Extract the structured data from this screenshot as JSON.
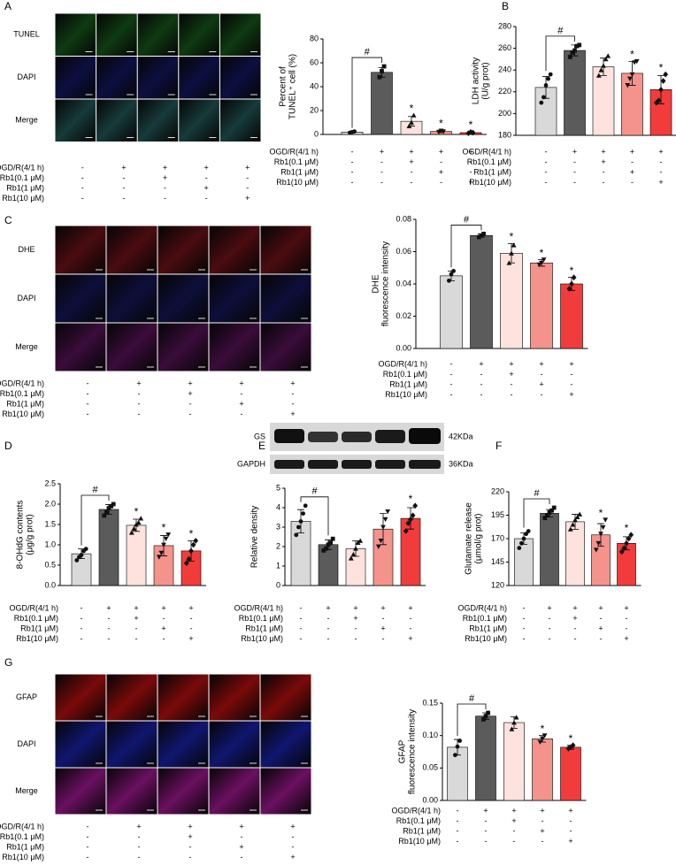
{
  "letters": [
    "A",
    "B",
    "C",
    "D",
    "E",
    "F",
    "G"
  ],
  "conditions": [
    {
      "label": "OGD/R(4/1 h)",
      "signs": [
        "-",
        "+",
        "+",
        "+",
        "+"
      ]
    },
    {
      "label": "Rb1(0.1 μM)",
      "signs": [
        "-",
        "-",
        "+",
        "-",
        "-"
      ]
    },
    {
      "label": "Rb1(1 μM)",
      "signs": [
        "-",
        "-",
        "-",
        "+",
        "-"
      ]
    },
    {
      "label": "Rb1(10 μM)",
      "signs": [
        "-",
        "-",
        "-",
        "-",
        "+"
      ]
    }
  ],
  "image_panels": [
    {
      "rows": [
        {
          "label": "TUNEL",
          "color": "#22b422",
          "image_color": "#0f3a12"
        },
        {
          "label": "DAPI",
          "color": "#2b2bd6",
          "image_color": "#0d0f40"
        },
        {
          "label": "Merge",
          "color": "#000000",
          "image_color": "#173a3a"
        }
      ]
    },
    {
      "rows": [
        {
          "label": "DHE",
          "color": "#e02020",
          "image_color": "#4a0c10"
        },
        {
          "label": "DAPI",
          "color": "#2b2bd6",
          "image_color": "#0d0f3a"
        },
        {
          "label": "Merge",
          "color": "#000000",
          "image_color": "#3a0c3a"
        }
      ]
    },
    {
      "rows": [
        {
          "label": "GFAP",
          "color": "#e02020",
          "image_color": "#7a0a0a"
        },
        {
          "label": "DAPI",
          "color": "#2b2bd6",
          "image_color": "#10166e"
        },
        {
          "label": "Merge",
          "color": "#000000",
          "image_color": "#6a1060"
        }
      ]
    }
  ],
  "blot": {
    "bands": [
      {
        "label": "GS",
        "size": "42KDa"
      },
      {
        "label": "GAPDH",
        "size": "36KDa"
      }
    ]
  },
  "chart_data": [
    {
      "type": "bar",
      "ylabel": [
        "Percent of",
        "TUNEL⁺ cell (%)"
      ],
      "values": [
        2,
        52,
        11,
        2.5,
        1.5
      ],
      "errors": [
        0.5,
        4,
        4,
        1,
        0.8
      ],
      "points": [
        [
          1.5,
          2,
          2.5
        ],
        [
          48,
          53,
          57
        ],
        [
          7,
          10,
          16
        ],
        [
          2,
          3,
          2.5
        ],
        [
          1,
          2,
          1.5
        ]
      ],
      "colors": [
        "#d9d9d9",
        "#5b5b5b",
        "#fde2de",
        "#f4938c",
        "#f23c3c"
      ],
      "ylim": [
        0,
        80
      ],
      "yticks": [
        0,
        20,
        40,
        60,
        80
      ],
      "marks": [
        null,
        "#",
        "*",
        "*",
        "*"
      ]
    },
    {
      "type": "bar",
      "ylabel": [
        "LDH activity",
        "(U/g prot)"
      ],
      "values": [
        224,
        258,
        243,
        237,
        222
      ],
      "errors": [
        10,
        5,
        8,
        11,
        13
      ],
      "points": [
        [
          210,
          215,
          226,
          232,
          236
        ],
        [
          252,
          256,
          258,
          262,
          263
        ],
        [
          235,
          240,
          244,
          250,
          253
        ],
        [
          226,
          232,
          236,
          247,
          248
        ],
        [
          210,
          212,
          222,
          230,
          236
        ]
      ],
      "colors": [
        "#d9d9d9",
        "#5b5b5b",
        "#fde2de",
        "#f4938c",
        "#f23c3c"
      ],
      "ylim": [
        180,
        280
      ],
      "yticks": [
        180,
        200,
        220,
        240,
        260,
        280
      ],
      "marks": [
        null,
        "#",
        null,
        "*",
        "*"
      ]
    },
    {
      "type": "bar",
      "ylabel": [
        "DHE",
        "fluorescence intensity"
      ],
      "values": [
        0.045,
        0.07,
        0.059,
        0.053,
        0.04
      ],
      "errors": [
        0.003,
        0.001,
        0.006,
        0.002,
        0.004
      ],
      "points": [
        [
          0.042,
          0.046,
          0.048
        ],
        [
          0.069,
          0.07,
          0.071
        ],
        [
          0.053,
          0.059,
          0.064
        ],
        [
          0.052,
          0.053,
          0.055
        ],
        [
          0.037,
          0.04,
          0.044
        ]
      ],
      "colors": [
        "#d9d9d9",
        "#5b5b5b",
        "#fde2de",
        "#f4938c",
        "#f23c3c"
      ],
      "ylim": [
        0,
        0.08
      ],
      "yticks": [
        {
          "value": 0,
          "label": "0.00"
        },
        0.02,
        0.04,
        0.06,
        0.08
      ],
      "marks": [
        null,
        "#",
        "*",
        "*",
        "*"
      ]
    },
    {
      "type": "bar",
      "ylabel": [
        "8-OHdG contents",
        "(μg/g prot)"
      ],
      "values": [
        0.78,
        1.87,
        1.48,
        0.98,
        0.85
      ],
      "errors": [
        0.12,
        0.12,
        0.15,
        0.25,
        0.25
      ],
      "points": [
        [
          0.62,
          0.7,
          0.75,
          0.85,
          0.9
        ],
        [
          1.72,
          1.8,
          1.9,
          1.95,
          2.0
        ],
        [
          1.3,
          1.4,
          1.5,
          1.55,
          1.65
        ],
        [
          0.7,
          0.8,
          1.0,
          1.15,
          1.25
        ],
        [
          0.55,
          0.65,
          0.85,
          1.0,
          1.1
        ]
      ],
      "colors": [
        "#d9d9d9",
        "#5b5b5b",
        "#fde2de",
        "#f4938c",
        "#f23c3c"
      ],
      "ylim": [
        0,
        2.5
      ],
      "yticks": [
        {
          "value": 0,
          "label": "0.0"
        },
        0.5,
        {
          "value": 1,
          "label": "1.0"
        },
        1.5,
        {
          "value": 2,
          "label": "2.0"
        },
        2.5
      ],
      "marks": [
        null,
        "#",
        "*",
        "*",
        "*"
      ]
    },
    {
      "type": "bar",
      "ylabel": [
        "Relative density"
      ],
      "values": [
        3.3,
        2.1,
        1.9,
        2.9,
        3.45
      ],
      "errors": [
        0.6,
        0.25,
        0.4,
        0.8,
        0.55
      ],
      "points": [
        [
          2.6,
          3,
          3.3,
          3.7,
          4.1
        ],
        [
          1.8,
          1.9,
          2.1,
          2.2,
          2.4
        ],
        [
          1.4,
          1.6,
          1.9,
          2.2,
          2.3
        ],
        [
          2.0,
          2.3,
          3.0,
          3.4,
          3.8
        ],
        [
          2.8,
          3.2,
          3.4,
          3.6,
          4.1
        ]
      ],
      "colors": [
        "#d9d9d9",
        "#5b5b5b",
        "#fde2de",
        "#f4938c",
        "#f23c3c"
      ],
      "ylim": [
        0,
        5
      ],
      "yticks": [
        0,
        1,
        2,
        3,
        4,
        5
      ],
      "marks": [
        null,
        "#",
        null,
        null,
        "*"
      ]
    },
    {
      "type": "bar",
      "ylabel": [
        "Glutamate release",
        "(μmol/g prot)"
      ],
      "values": [
        170,
        197,
        188,
        174,
        165
      ],
      "errors": [
        6,
        4,
        8,
        12,
        7
      ],
      "points": [
        [
          160,
          165,
          170,
          175,
          178
        ],
        [
          192,
          195,
          198,
          200,
          203
        ],
        [
          180,
          185,
          190,
          193,
          196
        ],
        [
          158,
          165,
          175,
          182,
          190
        ],
        [
          156,
          160,
          165,
          170,
          174
        ]
      ],
      "colors": [
        "#d9d9d9",
        "#5b5b5b",
        "#fde2de",
        "#f4938c",
        "#f23c3c"
      ],
      "ylim": [
        120,
        220
      ],
      "yticks": [
        120,
        145,
        170,
        195,
        220
      ],
      "marks": [
        null,
        "#",
        null,
        "*",
        "*"
      ]
    },
    {
      "type": "bar",
      "ylabel": [
        "GFAP",
        "fluorescence intensity"
      ],
      "values": [
        0.082,
        0.13,
        0.12,
        0.095,
        0.082
      ],
      "errors": [
        0.012,
        0.005,
        0.009,
        0.005,
        0.003
      ],
      "points": [
        [
          0.07,
          0.083,
          0.092
        ],
        [
          0.125,
          0.13,
          0.135
        ],
        [
          0.11,
          0.12,
          0.128
        ],
        [
          0.09,
          0.095,
          0.1
        ],
        [
          0.08,
          0.082,
          0.085
        ]
      ],
      "colors": [
        "#d9d9d9",
        "#5b5b5b",
        "#fde2de",
        "#f4938c",
        "#f23c3c"
      ],
      "ylim": [
        0,
        0.15
      ],
      "yticks": [
        {
          "value": 0,
          "label": "0.00"
        },
        0.05,
        {
          "value": 0.1,
          "label": "0.10"
        },
        0.15
      ],
      "marks": [
        null,
        "#",
        null,
        "*",
        "*"
      ]
    }
  ]
}
